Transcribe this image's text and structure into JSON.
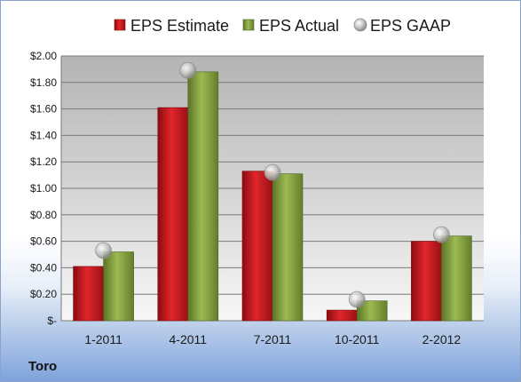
{
  "chart_data": {
    "type": "bar",
    "categories": [
      "1-2011",
      "4-2011",
      "7-2011",
      "10-2011",
      "2-2012"
    ],
    "series": [
      {
        "name": "EPS Estimate",
        "kind": "bar",
        "color": "#c0161b",
        "values": [
          0.41,
          1.61,
          1.13,
          0.08,
          0.6
        ]
      },
      {
        "name": "EPS Actual",
        "kind": "bar",
        "color": "#7f9c3a",
        "values": [
          0.52,
          1.88,
          1.11,
          0.15,
          0.64
        ]
      },
      {
        "name": "EPS GAAP",
        "kind": "marker",
        "color": "#b8b8b8",
        "values": [
          0.53,
          1.89,
          1.12,
          0.16,
          0.65
        ]
      }
    ],
    "yticks": [
      "$-",
      "$0.20",
      "$0.40",
      "$0.60",
      "$0.80",
      "$1.00",
      "$1.20",
      "$1.40",
      "$1.60",
      "$1.80",
      "$2.00"
    ],
    "ylim": [
      0,
      2.0
    ],
    "grid": true,
    "legend_position": "top",
    "title": "",
    "xlabel": "",
    "ylabel": ""
  },
  "company": "Toro"
}
